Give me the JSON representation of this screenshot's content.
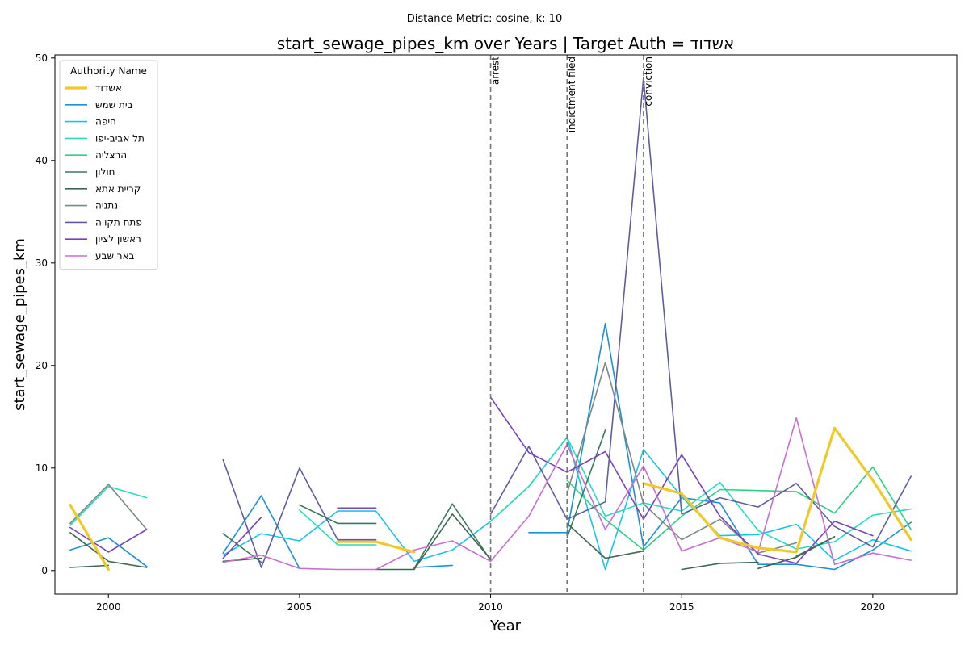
{
  "chart_data": {
    "type": "line",
    "suptitle": "Distance Metric: cosine, k: 10",
    "title": "start_sewage_pipes_km over Years | Target Auth = אשדוד",
    "xlabel": "Year",
    "ylabel": "start_sewage_pipes_km",
    "xlim": [
      1998.6,
      2022.2
    ],
    "ylim": [
      -2.3,
      50.3
    ],
    "xticks": [
      2000,
      2005,
      2010,
      2015,
      2020
    ],
    "yticks": [
      0,
      10,
      20,
      30,
      40,
      50
    ],
    "grid": false,
    "legend": {
      "title": "Authority Name",
      "placement": "top-left"
    },
    "events": [
      {
        "year": 2010,
        "label": "arrest"
      },
      {
        "year": 2012,
        "label": "indictment filed"
      },
      {
        "year": 2014,
        "label": "conviction"
      }
    ],
    "series": [
      {
        "name": "אשדוד",
        "color": "#f0c929",
        "highlight": true,
        "points": [
          [
            1999,
            6.4
          ],
          [
            2000,
            0.1
          ],
          null,
          [
            2006,
            2.8
          ],
          [
            2007,
            2.8
          ],
          [
            2008,
            1.8
          ],
          null,
          [
            2014,
            8.5
          ],
          [
            2015,
            7.5
          ],
          [
            2016,
            3.2
          ],
          [
            2017,
            2.2
          ],
          [
            2018,
            1.8
          ],
          [
            2019,
            13.9
          ],
          [
            2020,
            8.8
          ],
          [
            2021,
            3.0
          ]
        ]
      },
      {
        "name": "בית שמש",
        "color": "#1f8fd6",
        "points": [
          [
            1999,
            2.0
          ],
          [
            2000,
            3.2
          ],
          [
            2001,
            0.4
          ],
          null,
          [
            2003,
            1.7
          ],
          [
            2004,
            7.3
          ],
          [
            2005,
            0.2
          ],
          null,
          [
            2008,
            0.3
          ],
          [
            2009,
            0.5
          ],
          null,
          [
            2011,
            3.7
          ],
          [
            2012,
            3.7
          ],
          [
            2013,
            24.1
          ],
          [
            2014,
            2.3
          ],
          [
            2015,
            7.1
          ],
          [
            2016,
            6.6
          ],
          [
            2017,
            0.6
          ],
          [
            2018,
            0.6
          ],
          [
            2019,
            0.1
          ],
          [
            2020,
            2.0
          ],
          [
            2021,
            4.7
          ]
        ]
      },
      {
        "name": "חיפה",
        "color": "#1cc3e8",
        "points": [
          [
            2003,
            1.5
          ],
          [
            2004,
            3.6
          ],
          [
            2005,
            2.9
          ],
          [
            2006,
            5.8
          ],
          [
            2007,
            5.8
          ],
          [
            2008,
            0.9
          ],
          [
            2009,
            2.0
          ],
          [
            2010,
            4.8
          ],
          [
            2011,
            8.2
          ],
          [
            2012,
            13.0
          ],
          [
            2013,
            0.1
          ],
          [
            2014,
            11.8
          ],
          [
            2015,
            7.2
          ],
          [
            2016,
            3.4
          ],
          [
            2017,
            3.5
          ],
          [
            2018,
            4.5
          ],
          [
            2019,
            1.0
          ],
          [
            2020,
            3.0
          ],
          [
            2021,
            1.9
          ]
        ]
      },
      {
        "name": "תל אביב-יפו",
        "color": "#27dcc0",
        "points": [
          [
            1999,
            4.4
          ],
          [
            2000,
            8.2
          ],
          [
            2001,
            7.1
          ],
          null,
          [
            2005,
            5.9
          ],
          [
            2006,
            2.5
          ],
          [
            2007,
            2.5
          ],
          null,
          [
            2010,
            4.8
          ],
          [
            2011,
            8.2
          ],
          [
            2012,
            13.0
          ],
          [
            2013,
            5.3
          ],
          [
            2014,
            6.6
          ],
          [
            2015,
            5.8
          ],
          [
            2016,
            8.6
          ],
          [
            2017,
            3.9
          ],
          [
            2018,
            2.1
          ],
          [
            2019,
            2.8
          ],
          [
            2020,
            5.4
          ],
          [
            2021,
            6.0
          ]
        ]
      },
      {
        "name": "הרצליה",
        "color": "#2fcf85",
        "points": [
          [
            2012,
            8.8
          ],
          [
            2013,
            5.0
          ],
          [
            2014,
            2.0
          ],
          [
            2015,
            5.3
          ],
          [
            2016,
            7.9
          ],
          [
            2017,
            7.8
          ],
          [
            2018,
            7.7
          ],
          [
            2019,
            5.6
          ],
          [
            2020,
            10.1
          ],
          [
            2021,
            4.0
          ]
        ]
      },
      {
        "name": "חולון",
        "color": "#3a7a5c",
        "points": [
          [
            2003,
            3.6
          ],
          [
            2004,
            0.8
          ],
          null,
          [
            2005,
            6.4
          ],
          [
            2006,
            4.6
          ],
          [
            2007,
            4.6
          ],
          null,
          [
            2008,
            0.2
          ],
          [
            2009,
            6.5
          ],
          [
            2010,
            1.0
          ],
          null,
          [
            2012,
            3.2
          ],
          [
            2013,
            13.7
          ],
          null,
          [
            2018,
            1.4
          ],
          [
            2019,
            3.3
          ]
        ]
      },
      {
        "name": "קריית אתא",
        "color": "#3e6652",
        "points": [
          [
            1999,
            0.3
          ],
          [
            2000,
            0.5
          ],
          null,
          [
            1999,
            3.7
          ],
          [
            2000,
            0.9
          ],
          [
            2001,
            0.3
          ],
          null,
          [
            2003,
            0.9
          ],
          [
            2004,
            1.2
          ],
          null,
          [
            2005,
            6.4
          ],
          null,
          [
            2007,
            0.1
          ],
          [
            2008,
            0.1
          ],
          [
            2009,
            5.5
          ],
          [
            2010,
            1.1
          ],
          null,
          [
            2012,
            4.6
          ],
          [
            2013,
            1.2
          ],
          [
            2014,
            1.9
          ],
          null,
          [
            2015,
            0.1
          ],
          [
            2016,
            0.7
          ],
          [
            2017,
            0.8
          ],
          null,
          [
            2017,
            0.2
          ],
          [
            2018,
            1.3
          ],
          [
            2019,
            3.3
          ]
        ]
      },
      {
        "name": "נתניה",
        "color": "#7a8a84",
        "points": [
          [
            1999,
            4.6
          ],
          [
            2000,
            8.4
          ],
          [
            2001,
            4.0
          ],
          null,
          [
            2012,
            7.5
          ],
          [
            2013,
            20.3
          ],
          [
            2014,
            6.5
          ],
          [
            2015,
            3.0
          ],
          [
            2016,
            5.0
          ],
          [
            2017,
            1.7
          ],
          [
            2018,
            2.7
          ]
        ]
      },
      {
        "name": "פתח תקווה",
        "color": "#5e5e9e",
        "points": [
          [
            2003,
            10.8
          ],
          [
            2004,
            0.3
          ],
          [
            2005,
            10.0
          ],
          [
            2006,
            3.0
          ],
          [
            2007,
            3.0
          ],
          null,
          [
            2010,
            5.5
          ],
          [
            2011,
            12.1
          ],
          [
            2012,
            5.0
          ],
          [
            2013,
            6.7
          ],
          [
            2014,
            48.1
          ],
          [
            2015,
            5.5
          ],
          [
            2016,
            7.1
          ],
          [
            2017,
            6.2
          ],
          [
            2018,
            8.5
          ],
          [
            2019,
            4.3
          ],
          [
            2020,
            2.3
          ],
          [
            2021,
            9.2
          ]
        ]
      },
      {
        "name": "ראשון לציון",
        "color": "#7b42b8",
        "points": [
          [
            1999,
            4.2
          ],
          [
            2000,
            1.8
          ],
          [
            2001,
            4.0
          ],
          null,
          [
            2003,
            1.2
          ],
          [
            2004,
            5.2
          ],
          null,
          [
            2006,
            6.1
          ],
          [
            2007,
            6.1
          ],
          null,
          [
            2010,
            16.9
          ],
          [
            2011,
            11.5
          ],
          [
            2012,
            9.6
          ],
          [
            2013,
            11.6
          ],
          [
            2014,
            5.0
          ],
          [
            2015,
            11.3
          ],
          [
            2016,
            5.3
          ],
          [
            2017,
            1.6
          ],
          [
            2018,
            0.7
          ],
          [
            2019,
            4.8
          ],
          [
            2020,
            3.4
          ]
        ]
      },
      {
        "name": "באר שבע",
        "color": "#c86fd0",
        "points": [
          [
            2003,
            0.8
          ],
          [
            2004,
            1.5
          ],
          [
            2005,
            0.2
          ],
          [
            2006,
            0.1
          ],
          [
            2007,
            0.1
          ],
          [
            2008,
            2.0
          ],
          [
            2009,
            2.9
          ],
          [
            2010,
            0.9
          ],
          [
            2011,
            5.3
          ],
          [
            2012,
            12.3
          ],
          [
            2013,
            4.0
          ],
          [
            2014,
            10.2
          ],
          [
            2015,
            1.9
          ],
          [
            2016,
            3.2
          ],
          [
            2017,
            1.8
          ],
          [
            2018,
            14.9
          ],
          [
            2019,
            0.6
          ],
          [
            2020,
            1.7
          ],
          [
            2021,
            1.0
          ]
        ]
      }
    ]
  }
}
